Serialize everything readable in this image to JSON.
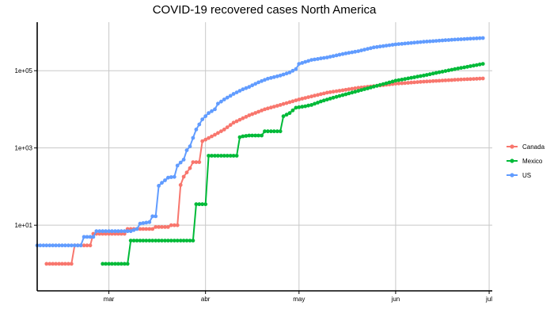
{
  "chart_data": {
    "type": "line",
    "title": "COVID-19 recovered cases North America",
    "xlabel": "",
    "ylabel": "",
    "x_scale": "time",
    "y_scale": "log10",
    "xlim": [
      "2020-02-07",
      "2020-07-02"
    ],
    "ylim": [
      0.2,
      1800000
    ],
    "x_ticks": [
      {
        "date": "2020-03-01",
        "label": "mar"
      },
      {
        "date": "2020-04-01",
        "label": "abr"
      },
      {
        "date": "2020-05-01",
        "label": "may"
      },
      {
        "date": "2020-06-01",
        "label": "jun"
      },
      {
        "date": "2020-07-01",
        "label": "jul"
      }
    ],
    "y_ticks": [
      {
        "value": 10,
        "label": "1e+01"
      },
      {
        "value": 1000,
        "label": "1e+03"
      },
      {
        "value": 100000,
        "label": "1e+05"
      }
    ],
    "grid": true,
    "legend_position": "right",
    "series": [
      {
        "name": "Canada",
        "color": "#F8766D",
        "points": [
          [
            "2020-02-10",
            1
          ],
          [
            "2020-02-18",
            1
          ],
          [
            "2020-02-19",
            3
          ],
          [
            "2020-02-24",
            3
          ],
          [
            "2020-02-25",
            6
          ],
          [
            "2020-03-06",
            6
          ],
          [
            "2020-03-07",
            8
          ],
          [
            "2020-03-15",
            8
          ],
          [
            "2020-03-16",
            9
          ],
          [
            "2020-03-20",
            9
          ],
          [
            "2020-03-21",
            10
          ],
          [
            "2020-03-23",
            10
          ],
          [
            "2020-03-24",
            110
          ],
          [
            "2020-03-25",
            180
          ],
          [
            "2020-03-27",
            300
          ],
          [
            "2020-03-28",
            430
          ],
          [
            "2020-03-30",
            430
          ],
          [
            "2020-03-31",
            1500
          ],
          [
            "2020-04-02",
            1800
          ],
          [
            "2020-04-04",
            2200
          ],
          [
            "2020-04-07",
            3000
          ],
          [
            "2020-04-10",
            4500
          ],
          [
            "2020-04-15",
            7000
          ],
          [
            "2020-04-20",
            10000
          ],
          [
            "2020-04-25",
            13000
          ],
          [
            "2020-05-01",
            18000
          ],
          [
            "2020-05-10",
            27000
          ],
          [
            "2020-05-20",
            36000
          ],
          [
            "2020-06-01",
            46000
          ],
          [
            "2020-06-10",
            52000
          ],
          [
            "2020-06-20",
            58000
          ],
          [
            "2020-06-29",
            63000
          ]
        ]
      },
      {
        "name": "Mexico",
        "color": "#00BA38",
        "points": [
          [
            "2020-02-28",
            1
          ],
          [
            "2020-03-07",
            1
          ],
          [
            "2020-03-08",
            4
          ],
          [
            "2020-03-28",
            4
          ],
          [
            "2020-03-29",
            35
          ],
          [
            "2020-04-01",
            35
          ],
          [
            "2020-04-02",
            630
          ],
          [
            "2020-04-11",
            630
          ],
          [
            "2020-04-12",
            1900
          ],
          [
            "2020-04-13",
            2000
          ],
          [
            "2020-04-15",
            2100
          ],
          [
            "2020-04-19",
            2100
          ],
          [
            "2020-04-20",
            2700
          ],
          [
            "2020-04-25",
            2700
          ],
          [
            "2020-04-26",
            6600
          ],
          [
            "2020-04-28",
            8000
          ],
          [
            "2020-04-30",
            11000
          ],
          [
            "2020-05-03",
            12000
          ],
          [
            "2020-05-05",
            13000
          ],
          [
            "2020-05-08",
            16000
          ],
          [
            "2020-05-12",
            20000
          ],
          [
            "2020-05-20",
            30000
          ],
          [
            "2020-06-01",
            55000
          ],
          [
            "2020-06-10",
            75000
          ],
          [
            "2020-06-20",
            110000
          ],
          [
            "2020-06-29",
            150000
          ]
        ]
      },
      {
        "name": "US",
        "color": "#619CFF",
        "points": [
          [
            "2020-02-07",
            3
          ],
          [
            "2020-02-21",
            3
          ],
          [
            "2020-02-22",
            5
          ],
          [
            "2020-02-25",
            5
          ],
          [
            "2020-02-26",
            7
          ],
          [
            "2020-03-07",
            7
          ],
          [
            "2020-03-08",
            7
          ],
          [
            "2020-03-10",
            8
          ],
          [
            "2020-03-11",
            11
          ],
          [
            "2020-03-14",
            12
          ],
          [
            "2020-03-15",
            17
          ],
          [
            "2020-03-16",
            17
          ],
          [
            "2020-03-17",
            105
          ],
          [
            "2020-03-18",
            125
          ],
          [
            "2020-03-20",
            170
          ],
          [
            "2020-03-21",
            176
          ],
          [
            "2020-03-22",
            178
          ],
          [
            "2020-03-23",
            350
          ],
          [
            "2020-03-25",
            500
          ],
          [
            "2020-03-26",
            870
          ],
          [
            "2020-03-27",
            1100
          ],
          [
            "2020-03-29",
            3000
          ],
          [
            "2020-03-31",
            5500
          ],
          [
            "2020-04-02",
            8000
          ],
          [
            "2020-04-04",
            10000
          ],
          [
            "2020-04-05",
            14000
          ],
          [
            "2020-04-07",
            18000
          ],
          [
            "2020-04-10",
            25000
          ],
          [
            "2020-04-13",
            33000
          ],
          [
            "2020-04-15",
            38000
          ],
          [
            "2020-04-18",
            50000
          ],
          [
            "2020-04-21",
            62000
          ],
          [
            "2020-04-25",
            75000
          ],
          [
            "2020-04-28",
            90000
          ],
          [
            "2020-04-30",
            110000
          ],
          [
            "2020-05-01",
            150000
          ],
          [
            "2020-05-05",
            190000
          ],
          [
            "2020-05-10",
            220000
          ],
          [
            "2020-05-15",
            270000
          ],
          [
            "2020-05-20",
            320000
          ],
          [
            "2020-05-25",
            400000
          ],
          [
            "2020-06-01",
            480000
          ],
          [
            "2020-06-10",
            560000
          ],
          [
            "2020-06-20",
            640000
          ],
          [
            "2020-06-29",
            700000
          ]
        ]
      }
    ]
  }
}
